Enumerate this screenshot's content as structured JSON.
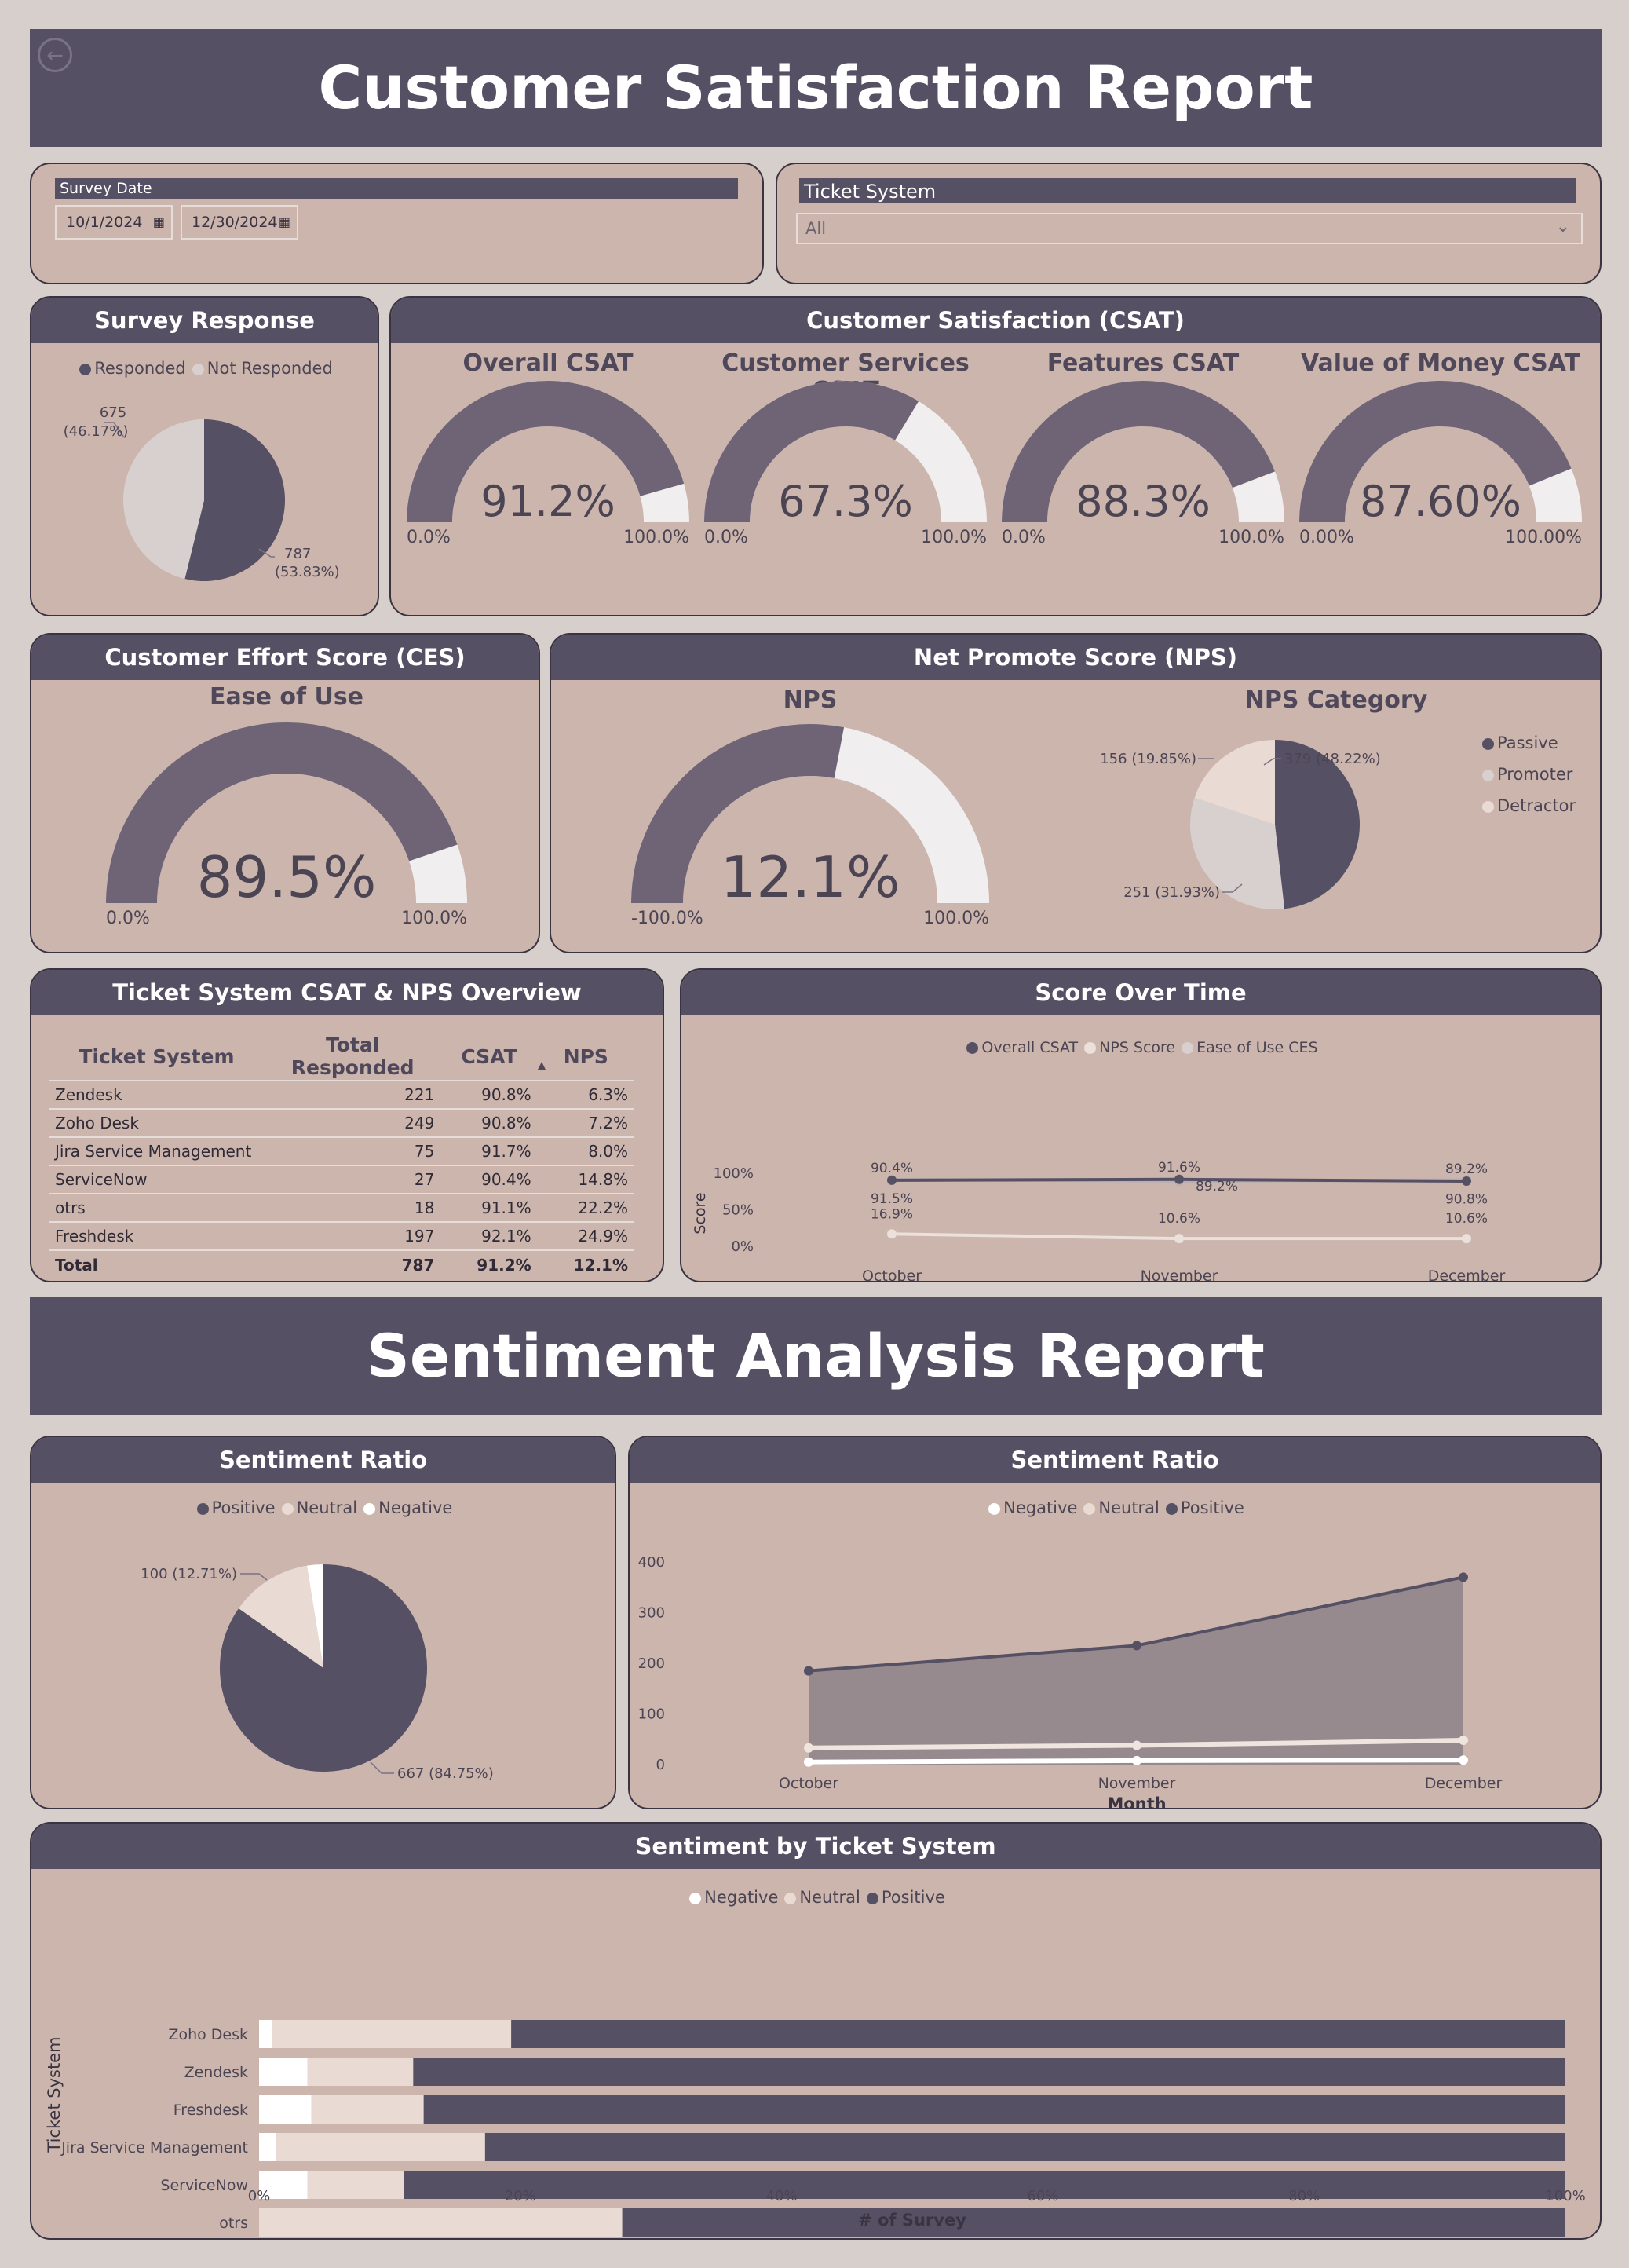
{
  "back_icon": "back-arrow-icon",
  "titles": {
    "main": "Customer Satisfaction Report",
    "sentiment": "Sentiment Analysis Report"
  },
  "filters": {
    "survey_date": {
      "label": "Survey Date",
      "start": "10/1/2024",
      "end": "12/30/2024"
    },
    "ticket_system": {
      "label": "Ticket System",
      "value": "All"
    }
  },
  "survey_response": {
    "title": "Survey Response",
    "legend": [
      "Responded",
      "Not Responded"
    ],
    "responded": {
      "label": "787",
      "pct": "(53.83%)",
      "value": 787
    },
    "not_responded": {
      "label": "675",
      "pct": "(46.17%)",
      "value": 675
    }
  },
  "csat": {
    "title": "Customer Satisfaction (CSAT)",
    "gauges": [
      {
        "title": "Overall CSAT",
        "value_label": "91.2%",
        "min": "0.0%",
        "max": "100.0%",
        "fraction": 0.912
      },
      {
        "title": "Customer Services CSAT",
        "value_label": "67.3%",
        "min": "0.0%",
        "max": "100.0%",
        "fraction": 0.673
      },
      {
        "title": "Features CSAT",
        "value_label": "88.3%",
        "min": "0.0%",
        "max": "100.0%",
        "fraction": 0.883
      },
      {
        "title": "Value of Money CSAT",
        "value_label": "87.60%",
        "min": "0.00%",
        "max": "100.00%",
        "fraction": 0.876
      }
    ]
  },
  "ces": {
    "title": "Customer Effort Score (CES)",
    "subtitle": "Ease of Use",
    "value_label": "89.5%",
    "min": "0.0%",
    "max": "100.0%",
    "fraction": 0.895
  },
  "nps": {
    "title": "Net Promote Score (NPS)",
    "gauge": {
      "title": "NPS",
      "value_label": "12.1%",
      "min": "-100.0%",
      "max": "100.0%",
      "fraction": 0.5605
    },
    "category": {
      "title": "NPS Category",
      "legend": [
        "Passive",
        "Promoter",
        "Detractor"
      ],
      "labels": {
        "passive": "379 (48.22%)",
        "promoter": "251 (31.93%)",
        "detractor": "156 (19.85%)"
      },
      "values": {
        "passive": 379,
        "promoter": 251,
        "detractor": 156
      }
    }
  },
  "ticket_table": {
    "title": "Ticket System CSAT & NPS Overview",
    "headers": [
      "Ticket System",
      "Total Responded",
      "CSAT",
      "NPS"
    ],
    "rows": [
      [
        "Zendesk",
        "221",
        "90.8%",
        "6.3%"
      ],
      [
        "Zoho Desk",
        "249",
        "90.8%",
        "7.2%"
      ],
      [
        "Jira Service Management",
        "75",
        "91.7%",
        "8.0%"
      ],
      [
        "ServiceNow",
        "27",
        "90.4%",
        "14.8%"
      ],
      [
        "otrs",
        "18",
        "91.1%",
        "22.2%"
      ],
      [
        "Freshdesk",
        "197",
        "92.1%",
        "24.9%"
      ]
    ],
    "total": [
      "Total",
      "787",
      "91.2%",
      "12.1%"
    ]
  },
  "score_over_time": {
    "title": "Score Over Time",
    "legend": [
      "Overall CSAT",
      "NPS Score",
      "Ease of Use CES"
    ],
    "y_axis_label": "Score",
    "y_ticks": [
      "100%",
      "50%",
      "0%"
    ],
    "months": [
      "October",
      "November",
      "December"
    ],
    "series": {
      "csat": {
        "values": [
          90.4,
          91.6,
          89.2
        ],
        "labels": [
          "90.4%",
          "91.6%",
          "89.2%"
        ]
      },
      "ces": {
        "values": [
          91.5,
          89.2,
          90.8
        ],
        "labels": [
          "91.5%",
          "89.2%",
          "90.8%"
        ]
      },
      "nps": {
        "values": [
          16.9,
          10.6,
          10.6
        ],
        "labels": [
          "16.9%",
          "10.6%",
          "10.6%"
        ]
      }
    }
  },
  "sentiment_ratio_pie": {
    "title": "Sentiment Ratio",
    "legend": [
      "Positive",
      "Neutral",
      "Negative"
    ],
    "labels": {
      "neutral": "100 (12.71%)",
      "positive": "667 (84.75%)"
    },
    "values": {
      "positive": 667,
      "neutral": 100,
      "negative": 20
    }
  },
  "sentiment_ratio_area": {
    "title": "Sentiment Ratio",
    "legend": [
      "Negative",
      "Neutral",
      "Positive"
    ],
    "y_ticks": [
      "400",
      "300",
      "200",
      "100",
      "0"
    ],
    "x_label": "Month",
    "months": [
      "October",
      "November",
      "December"
    ],
    "series": {
      "positive": [
        185,
        235,
        370
      ],
      "neutral": [
        33,
        38,
        48
      ],
      "negative": [
        5,
        8,
        9
      ]
    }
  },
  "chart_data": [
    {
      "type": "pie",
      "title": "Survey Response",
      "categories": [
        "Responded",
        "Not Responded"
      ],
      "values": [
        787,
        675
      ]
    },
    {
      "type": "pie",
      "title": "NPS Category",
      "categories": [
        "Passive",
        "Promoter",
        "Detractor"
      ],
      "values": [
        379,
        251,
        156
      ]
    },
    {
      "type": "line",
      "title": "Score Over Time",
      "x": [
        "October",
        "November",
        "December"
      ],
      "ylabel": "Score",
      "ylim": [
        0,
        100
      ],
      "series": [
        {
          "name": "Overall CSAT",
          "values": [
            90.4,
            91.6,
            89.2
          ]
        },
        {
          "name": "NPS Score",
          "values": [
            16.9,
            10.6,
            10.6
          ]
        },
        {
          "name": "Ease of Use CES",
          "values": [
            91.5,
            89.2,
            90.8
          ]
        }
      ]
    },
    {
      "type": "pie",
      "title": "Sentiment Ratio",
      "categories": [
        "Positive",
        "Neutral",
        "Negative"
      ],
      "values": [
        667,
        100,
        20
      ]
    },
    {
      "type": "area",
      "title": "Sentiment Ratio",
      "x": [
        "October",
        "November",
        "December"
      ],
      "xlabel": "Month",
      "ylim": [
        0,
        400
      ],
      "series": [
        {
          "name": "Negative",
          "values": [
            5,
            8,
            9
          ]
        },
        {
          "name": "Neutral",
          "values": [
            33,
            38,
            48
          ]
        },
        {
          "name": "Positive",
          "values": [
            185,
            235,
            370
          ]
        }
      ]
    },
    {
      "type": "bar",
      "title": "Sentiment by Ticket System",
      "categories": [
        "Zoho Desk",
        "Zendesk",
        "Freshdesk",
        "Jira Service Management",
        "ServiceNow",
        "otrs"
      ],
      "xlabel": "# of Survey",
      "ylabel": "Ticket System",
      "xlim": [
        0,
        100
      ],
      "series": [
        {
          "name": "Negative",
          "values": [
            1,
            3.7,
            4,
            1.3,
            3.7,
            0
          ]
        },
        {
          "name": "Neutral",
          "values": [
            18.3,
            8.1,
            8.6,
            16.0,
            7.4,
            27.8
          ]
        },
        {
          "name": "Positive",
          "values": [
            80.7,
            88.2,
            87.4,
            82.7,
            88.9,
            72.2
          ]
        }
      ]
    }
  ],
  "sentiment_by_ticket": {
    "title": "Sentiment by Ticket System",
    "legend": [
      "Negative",
      "Neutral",
      "Positive"
    ],
    "y_axis_label": "Ticket System",
    "x_axis_label": "# of Survey",
    "x_ticks": [
      "0%",
      "20%",
      "40%",
      "60%",
      "80%",
      "100%"
    ],
    "categories": [
      "Zoho Desk",
      "Zendesk",
      "Freshdesk",
      "Jira Service Management",
      "ServiceNow",
      "otrs"
    ]
  },
  "colors": {
    "dark": "#565064",
    "gauge": "#6f6476",
    "gauge_bg": "#f0eeee",
    "card": "#cbb5ad",
    "page": "#d6cfcb",
    "light_gray": "#d7d0ce",
    "beige": "#e9dbd4",
    "white": "#ffffff",
    "area_fill": "#978a8e"
  }
}
